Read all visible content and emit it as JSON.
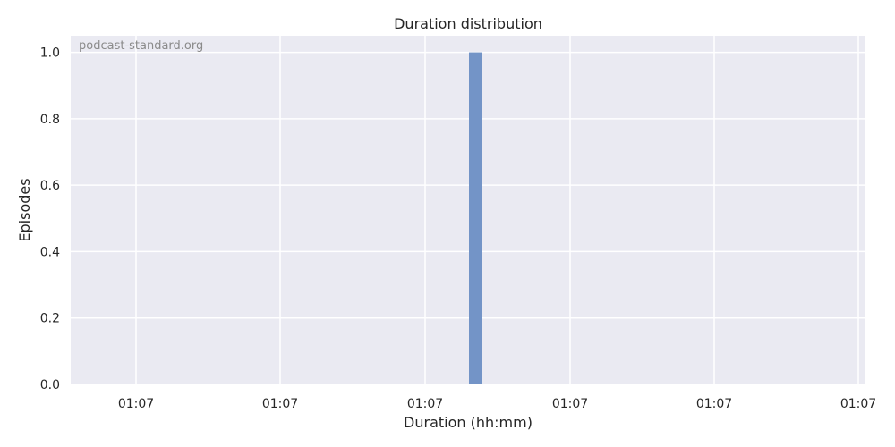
{
  "chart_data": {
    "type": "bar",
    "title": "Duration distribution",
    "xlabel": "Duration (hh:mm)",
    "ylabel": "Episodes",
    "watermark": "podcast-standard.org",
    "x_tick_labels": [
      "01:07",
      "01:07",
      "01:07",
      "01:07",
      "01:07",
      "01:07"
    ],
    "y_ticks": [
      0.0,
      0.2,
      0.4,
      0.6,
      0.8,
      1.0
    ],
    "y_tick_labels": [
      "0.0",
      "0.2",
      "0.4",
      "0.6",
      "0.8",
      "1.0"
    ],
    "ylim": [
      0,
      1.05
    ],
    "bars": [
      {
        "label": "01:07",
        "value": 1
      }
    ],
    "grid": true,
    "colors": {
      "background": "#eaeaf2",
      "grid": "#ffffff",
      "bar": "#7394c7"
    }
  }
}
